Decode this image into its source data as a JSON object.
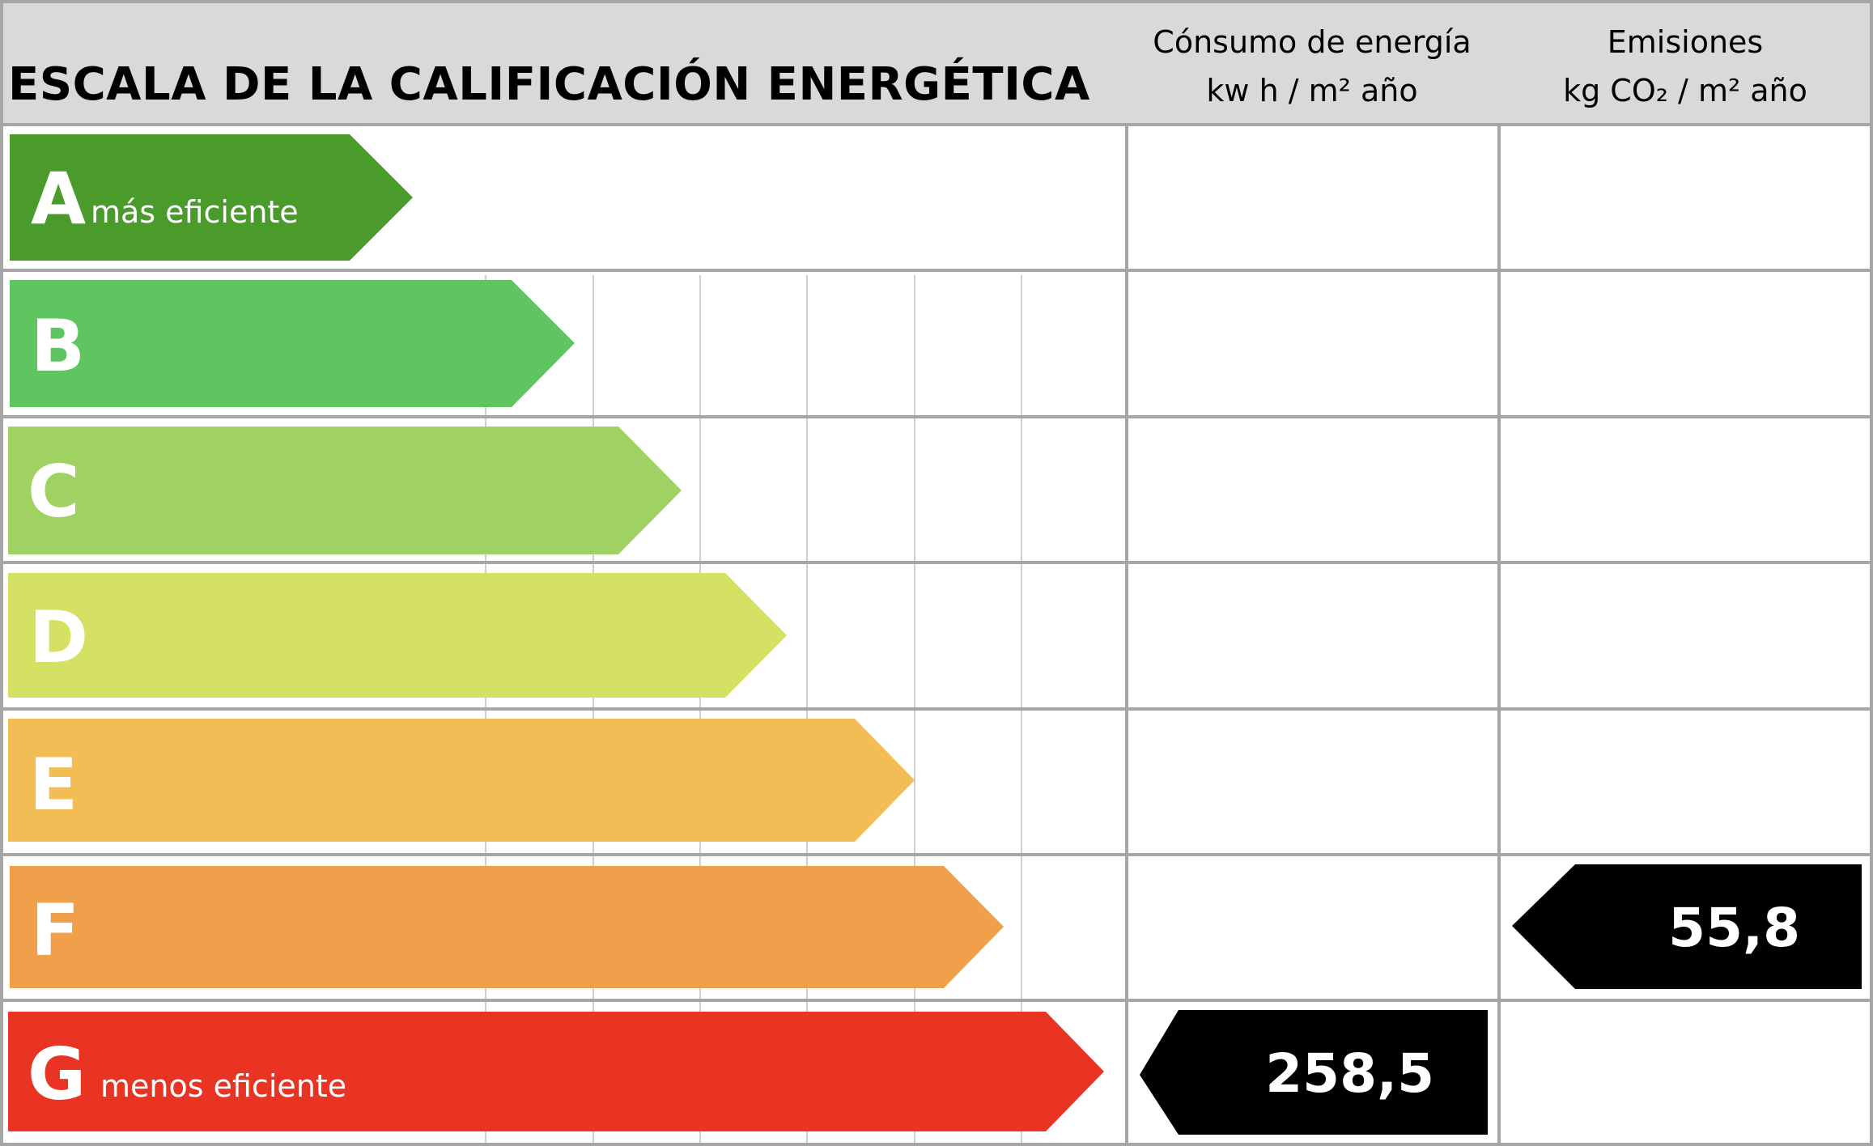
{
  "header": {
    "title": "ESCALA DE LA CALIFICACIÓN ENERGÉTICA",
    "consumo_line1": "Cónsumo de energía",
    "consumo_line2": "kw h / m² año",
    "emisiones_line1": "Emisiones",
    "emisiones_line2": "kg CO₂ / m² año"
  },
  "ratings": [
    {
      "letter": "A",
      "sub": "más eficiente",
      "color": "#4a9a2c"
    },
    {
      "letter": "B",
      "sub": "",
      "color": "#5fc560"
    },
    {
      "letter": "C",
      "sub": "",
      "color": "#a0d163"
    },
    {
      "letter": "D",
      "sub": "",
      "color": "#d4e162"
    },
    {
      "letter": "E",
      "sub": "",
      "color": "#f2bd54"
    },
    {
      "letter": "F",
      "sub": "",
      "color": "#f0a04b"
    },
    {
      "letter": "G",
      "sub": "menos eficiente",
      "color": "#e93323"
    }
  ],
  "indicators": {
    "consumo": {
      "rating": "G",
      "value": "258,5"
    },
    "emisiones": {
      "rating": "F",
      "value": "55,8"
    }
  }
}
